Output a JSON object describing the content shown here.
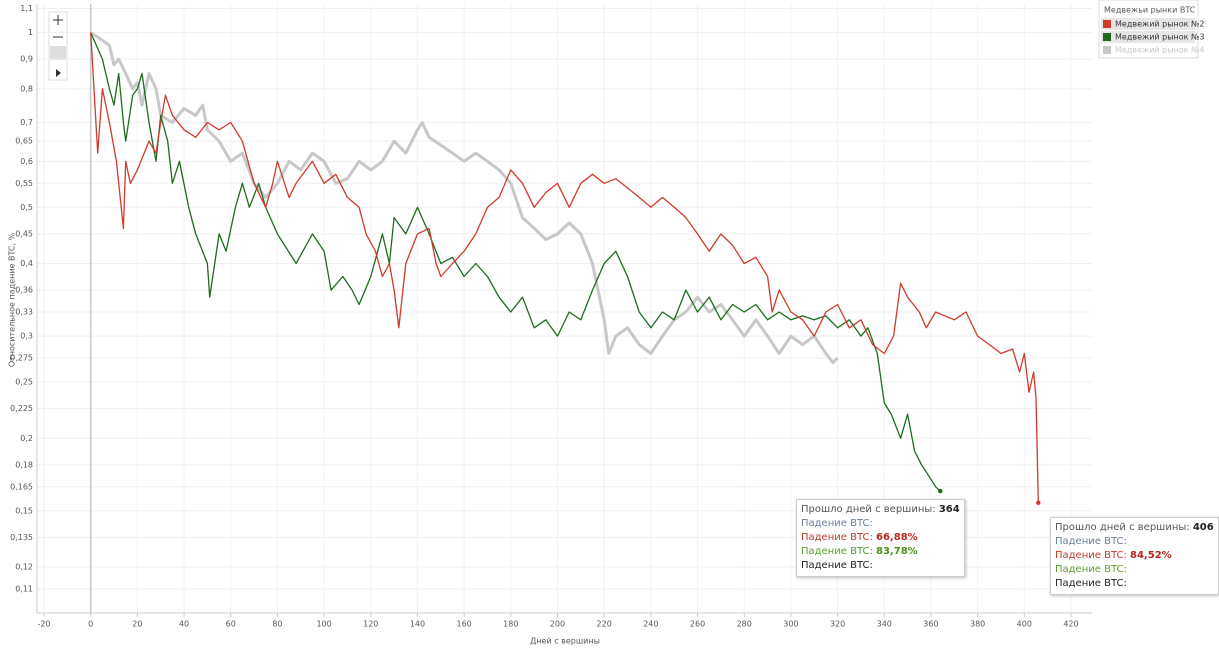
{
  "chart_data": {
    "type": "line",
    "x_label": "Дней с вершины",
    "y_label": "Относительное падение BTC, %",
    "yscale": "log",
    "grid": true,
    "legend": "right",
    "legend_title": "Медвежьи рынки BTC",
    "xlim": [
      -23,
      429
    ],
    "xticks": [
      -20,
      0,
      20,
      40,
      60,
      80,
      100,
      120,
      140,
      160,
      180,
      200,
      220,
      240,
      260,
      280,
      300,
      320,
      340,
      360,
      380,
      400,
      420
    ],
    "ylim": [
      0.1,
      1.12
    ],
    "yticks": [
      {
        "value": 1.1,
        "label": "1,1"
      },
      1,
      {
        "value": 0.9,
        "label": "0,9"
      },
      {
        "value": 0.8,
        "label": "0,8"
      },
      {
        "value": 0.7,
        "label": "0,7"
      },
      {
        "value": 0.65,
        "label": "0,65"
      },
      {
        "value": 0.6,
        "label": "0,6"
      },
      {
        "value": 0.55,
        "label": "0,55"
      },
      {
        "value": 0.5,
        "label": "0,5"
      },
      {
        "value": 0.45,
        "label": "0,45"
      },
      {
        "value": 0.4,
        "label": "0,4"
      },
      {
        "value": 0.36,
        "label": "0,36"
      },
      {
        "value": 0.33,
        "label": "0,33"
      },
      {
        "value": 0.3,
        "label": "0,3"
      },
      {
        "value": 0.275,
        "label": "0,275"
      },
      {
        "value": 0.25,
        "label": "0,25"
      },
      {
        "value": 0.225,
        "label": "0,225"
      },
      {
        "value": 0.2,
        "label": "0,2"
      },
      {
        "value": 0.18,
        "label": "0,18"
      },
      {
        "value": 0.165,
        "label": "0,165"
      },
      {
        "value": 0.15,
        "label": "0,15"
      },
      {
        "value": 0.135,
        "label": "0,135"
      },
      {
        "value": 0.12,
        "label": "0,12"
      },
      {
        "value": 0.11,
        "label": "0,11"
      }
    ],
    "series": [
      {
        "name": "Медвежий рынок №2",
        "color": "#d03a2a",
        "width": 1.3,
        "x": [
          0,
          3,
          5,
          8,
          11,
          14,
          15,
          17,
          20,
          25,
          28,
          30,
          32,
          35,
          40,
          45,
          50,
          55,
          60,
          65,
          70,
          75,
          78,
          80,
          85,
          88,
          95,
          100,
          105,
          110,
          115,
          118,
          122,
          125,
          128,
          130,
          132,
          135,
          140,
          145,
          148,
          150,
          155,
          160,
          165,
          170,
          175,
          180,
          185,
          190,
          195,
          200,
          205,
          210,
          215,
          220,
          225,
          230,
          235,
          240,
          245,
          250,
          255,
          260,
          265,
          270,
          275,
          280,
          285,
          290,
          292,
          295,
          300,
          305,
          310,
          315,
          320,
          325,
          330,
          335,
          340,
          344,
          347,
          350,
          355,
          358,
          362,
          370,
          375,
          380,
          385,
          390,
          395,
          398,
          400,
          402,
          404,
          405,
          406
        ],
        "values": [
          1,
          0.62,
          0.8,
          0.7,
          0.6,
          0.46,
          0.6,
          0.55,
          0.58,
          0.65,
          0.62,
          0.7,
          0.78,
          0.72,
          0.68,
          0.66,
          0.7,
          0.68,
          0.7,
          0.65,
          0.55,
          0.5,
          0.55,
          0.6,
          0.52,
          0.55,
          0.6,
          0.55,
          0.57,
          0.52,
          0.5,
          0.45,
          0.42,
          0.38,
          0.4,
          0.36,
          0.31,
          0.4,
          0.45,
          0.46,
          0.4,
          0.38,
          0.4,
          0.42,
          0.45,
          0.5,
          0.52,
          0.58,
          0.55,
          0.5,
          0.53,
          0.55,
          0.5,
          0.55,
          0.57,
          0.55,
          0.56,
          0.54,
          0.52,
          0.5,
          0.52,
          0.5,
          0.48,
          0.45,
          0.42,
          0.45,
          0.43,
          0.4,
          0.41,
          0.38,
          0.33,
          0.36,
          0.33,
          0.32,
          0.3,
          0.33,
          0.34,
          0.31,
          0.32,
          0.29,
          0.28,
          0.3,
          0.37,
          0.35,
          0.33,
          0.31,
          0.33,
          0.32,
          0.33,
          0.3,
          0.29,
          0.28,
          0.285,
          0.26,
          0.28,
          0.24,
          0.26,
          0.235,
          0.1548
        ]
      },
      {
        "name": "Медвежий рынок №3",
        "color": "#1e6b1e",
        "width": 1.3,
        "x": [
          0,
          5,
          8,
          10,
          12,
          14,
          15,
          18,
          20,
          22,
          25,
          28,
          30,
          33,
          35,
          38,
          42,
          45,
          50,
          51,
          55,
          58,
          62,
          65,
          68,
          72,
          75,
          80,
          88,
          95,
          100,
          103,
          108,
          112,
          115,
          120,
          125,
          128,
          130,
          135,
          140,
          145,
          150,
          155,
          160,
          165,
          170,
          175,
          180,
          185,
          190,
          195,
          200,
          205,
          210,
          215,
          220,
          225,
          230,
          235,
          240,
          245,
          250,
          255,
          260,
          265,
          270,
          275,
          280,
          285,
          290,
          295,
          300,
          305,
          310,
          315,
          320,
          325,
          330,
          333,
          337,
          340,
          343,
          347,
          350,
          353,
          356,
          360,
          362,
          364
        ],
        "values": [
          1,
          0.9,
          0.8,
          0.75,
          0.85,
          0.7,
          0.65,
          0.78,
          0.8,
          0.85,
          0.7,
          0.6,
          0.72,
          0.65,
          0.55,
          0.6,
          0.5,
          0.45,
          0.4,
          0.35,
          0.45,
          0.42,
          0.5,
          0.55,
          0.5,
          0.55,
          0.5,
          0.45,
          0.4,
          0.45,
          0.42,
          0.36,
          0.38,
          0.36,
          0.34,
          0.38,
          0.45,
          0.4,
          0.48,
          0.45,
          0.5,
          0.45,
          0.4,
          0.41,
          0.38,
          0.4,
          0.38,
          0.35,
          0.33,
          0.35,
          0.31,
          0.32,
          0.3,
          0.33,
          0.32,
          0.36,
          0.4,
          0.42,
          0.38,
          0.33,
          0.31,
          0.33,
          0.32,
          0.36,
          0.33,
          0.35,
          0.32,
          0.34,
          0.33,
          0.34,
          0.32,
          0.33,
          0.32,
          0.325,
          0.32,
          0.325,
          0.31,
          0.32,
          0.3,
          0.31,
          0.28,
          0.23,
          0.22,
          0.2,
          0.22,
          0.19,
          0.18,
          0.17,
          0.165,
          0.1622
        ]
      },
      {
        "name": "Медвежий рынок №4",
        "color": "#c8c8c8",
        "width": 3,
        "x": [
          0,
          5,
          8,
          10,
          12,
          15,
          18,
          20,
          22,
          25,
          28,
          30,
          35,
          40,
          45,
          48,
          50,
          55,
          60,
          65,
          70,
          75,
          80,
          85,
          90,
          95,
          100,
          105,
          110,
          115,
          120,
          125,
          130,
          135,
          140,
          142,
          145,
          150,
          155,
          160,
          165,
          170,
          175,
          180,
          185,
          190,
          195,
          200,
          205,
          210,
          215,
          220,
          222,
          225,
          230,
          235,
          240,
          245,
          250,
          255,
          260,
          265,
          270,
          275,
          280,
          285,
          290,
          295,
          300,
          305,
          310,
          315,
          318,
          320
        ],
        "values": [
          1,
          0.97,
          0.95,
          0.88,
          0.9,
          0.85,
          0.8,
          0.82,
          0.75,
          0.85,
          0.8,
          0.72,
          0.7,
          0.74,
          0.72,
          0.75,
          0.68,
          0.65,
          0.6,
          0.62,
          0.55,
          0.52,
          0.55,
          0.6,
          0.58,
          0.62,
          0.6,
          0.55,
          0.56,
          0.6,
          0.58,
          0.6,
          0.65,
          0.62,
          0.68,
          0.7,
          0.66,
          0.64,
          0.62,
          0.6,
          0.62,
          0.6,
          0.58,
          0.55,
          0.48,
          0.46,
          0.44,
          0.45,
          0.47,
          0.45,
          0.4,
          0.32,
          0.28,
          0.3,
          0.31,
          0.29,
          0.28,
          0.3,
          0.32,
          0.33,
          0.35,
          0.33,
          0.34,
          0.32,
          0.3,
          0.32,
          0.3,
          0.28,
          0.3,
          0.29,
          0.3,
          0.28,
          0.27,
          0.275
        ]
      }
    ],
    "tooltips": [
      {
        "rows": [
          {
            "label": "Прошло дней с вершины:",
            "value": "364",
            "color": "#555555",
            "value_color": "#222222"
          },
          {
            "label": "Падение BTC:",
            "color": "#6b7f99"
          },
          {
            "label": "Падение BTC:",
            "value": "66,88%",
            "color": "#c0392b",
            "value_color": "#b5281c"
          },
          {
            "label": "Падение BTC:",
            "value": "83,78%",
            "color": "#5a9e2e",
            "value_color": "#4a8e1e"
          },
          {
            "label": "Падение BTC:",
            "color": "#222222"
          }
        ]
      },
      {
        "rows": [
          {
            "label": "Прошло дней с вершины:",
            "value": "406",
            "color": "#555555",
            "value_color": "#222222"
          },
          {
            "label": "Падение BTC:",
            "color": "#6b7f99"
          },
          {
            "label": "Падение BTC:",
            "value": "84,52%",
            "color": "#c0392b",
            "value_color": "#b5281c"
          },
          {
            "label": "Падение BTC:",
            "color": "#5a9e2e"
          },
          {
            "label": "Падение BTC:",
            "color": "#222222"
          }
        ]
      }
    ]
  }
}
